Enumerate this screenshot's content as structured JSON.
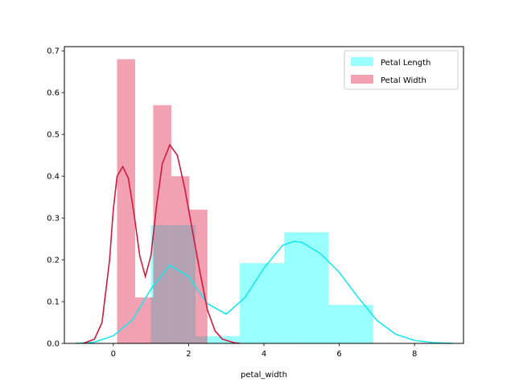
{
  "chart_data": {
    "type": "histogram+kde",
    "title": "",
    "xlabel": "petal_width",
    "ylabel": "",
    "xlim": [
      -1.3,
      9.3
    ],
    "ylim": [
      0,
      0.71
    ],
    "xticks": [
      0,
      2,
      4,
      6,
      8
    ],
    "yticks": [
      0.0,
      0.1,
      0.2,
      0.3,
      0.4,
      0.5,
      0.6,
      0.7
    ],
    "grid": false,
    "legend_position": "upper right",
    "series": [
      {
        "name": "Petal Length",
        "color": "#00FFFF",
        "line_color": "#1AE6EE",
        "bins": [
          {
            "x0": 1.0,
            "x1": 2.18,
            "height": 0.283
          },
          {
            "x0": 2.18,
            "x1": 3.36,
            "height": 0.017
          },
          {
            "x0": 3.36,
            "x1": 4.54,
            "height": 0.192
          },
          {
            "x0": 4.54,
            "x1": 5.72,
            "height": 0.266
          },
          {
            "x0": 5.72,
            "x1": 6.9,
            "height": 0.092
          }
        ],
        "kde": [
          [
            -1.0,
            0.0
          ],
          [
            -0.5,
            0.003
          ],
          [
            0.0,
            0.018
          ],
          [
            0.5,
            0.055
          ],
          [
            1.0,
            0.13
          ],
          [
            1.5,
            0.187
          ],
          [
            2.0,
            0.16
          ],
          [
            2.5,
            0.095
          ],
          [
            3.0,
            0.07
          ],
          [
            3.5,
            0.11
          ],
          [
            4.0,
            0.18
          ],
          [
            4.5,
            0.235
          ],
          [
            4.8,
            0.244
          ],
          [
            5.0,
            0.242
          ],
          [
            5.5,
            0.215
          ],
          [
            6.0,
            0.17
          ],
          [
            6.5,
            0.11
          ],
          [
            7.0,
            0.055
          ],
          [
            7.5,
            0.022
          ],
          [
            8.0,
            0.007
          ],
          [
            8.5,
            0.002
          ],
          [
            9.0,
            0.0
          ]
        ]
      },
      {
        "name": "Petal Width",
        "color": "#DC143C",
        "line_color": "#D01A40",
        "bins": [
          {
            "x0": 0.1,
            "x1": 0.58,
            "height": 0.68
          },
          {
            "x0": 0.58,
            "x1": 1.06,
            "height": 0.11
          },
          {
            "x0": 1.06,
            "x1": 1.54,
            "height": 0.57
          },
          {
            "x0": 1.54,
            "x1": 2.02,
            "height": 0.4
          },
          {
            "x0": 2.02,
            "x1": 2.5,
            "height": 0.32
          }
        ],
        "kde": [
          [
            -0.8,
            0.0
          ],
          [
            -0.5,
            0.01
          ],
          [
            -0.3,
            0.05
          ],
          [
            -0.1,
            0.2
          ],
          [
            0.0,
            0.32
          ],
          [
            0.1,
            0.4
          ],
          [
            0.25,
            0.423
          ],
          [
            0.4,
            0.395
          ],
          [
            0.55,
            0.31
          ],
          [
            0.7,
            0.21
          ],
          [
            0.85,
            0.16
          ],
          [
            1.0,
            0.21
          ],
          [
            1.15,
            0.33
          ],
          [
            1.3,
            0.43
          ],
          [
            1.5,
            0.475
          ],
          [
            1.7,
            0.45
          ],
          [
            1.9,
            0.37
          ],
          [
            2.1,
            0.27
          ],
          [
            2.3,
            0.17
          ],
          [
            2.5,
            0.08
          ],
          [
            2.7,
            0.03
          ],
          [
            2.9,
            0.01
          ],
          [
            3.2,
            0.002
          ],
          [
            3.35,
            0.0
          ]
        ]
      }
    ]
  }
}
